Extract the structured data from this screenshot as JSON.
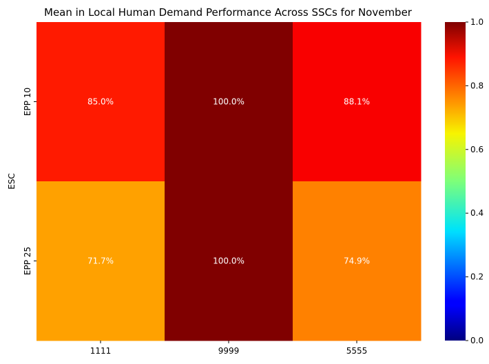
{
  "chart_data": {
    "type": "heatmap",
    "title": "Mean in Local Human Demand Performance Across SSCs for November",
    "xlabel": "",
    "ylabel": "ESC",
    "x_categories": [
      "1111",
      "9999",
      "5555"
    ],
    "y_categories": [
      "EPP 10",
      "EPP 25"
    ],
    "values": [
      [
        0.85,
        1.0,
        0.881
      ],
      [
        0.717,
        1.0,
        0.749
      ]
    ],
    "cell_labels": [
      [
        "85.0%",
        "100.0%",
        "88.1%"
      ],
      [
        "71.7%",
        "100.0%",
        "74.9%"
      ]
    ],
    "colormap": "jet",
    "vmin": 0.0,
    "vmax": 1.0,
    "colorbar_ticks": [
      "0.0",
      "0.2",
      "0.4",
      "0.6",
      "0.8",
      "1.0"
    ],
    "colorbar_tick_values": [
      0.0,
      0.2,
      0.4,
      0.6,
      0.8,
      1.0
    ]
  }
}
